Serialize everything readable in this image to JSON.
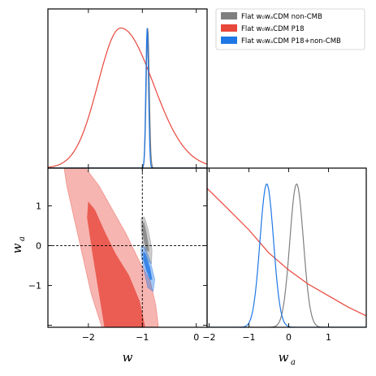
{
  "chart_data": {
    "type": "corner-plot",
    "parameters": [
      "w",
      "w_a"
    ],
    "xlabel_w": "w",
    "xlabel_wa": "w",
    "xlabel_wa_sub": "a",
    "ylabel_wa": "w",
    "ylabel_wa_sub": "a",
    "w_range": [
      -2.75,
      0.2
    ],
    "wa_range": [
      -2.05,
      1.95
    ],
    "w_ticks": [
      -2,
      -1,
      0
    ],
    "wa_ticks": [
      -2,
      -1,
      0,
      1
    ],
    "tick_labels": {
      "m2": "−2",
      "m1": "−1",
      "z": "0",
      "p1": "1"
    },
    "reference_lines": {
      "w": -1,
      "w_a": 0
    },
    "series": [
      {
        "name": "Flat w₀wₐCDM non-CMB",
        "color": "#7f7f7f",
        "w_peak": -0.9,
        "w_width": 0.028,
        "wa_peak": 0.2,
        "wa_width": 0.17,
        "contour_68": [
          [
            -1,
            0.55
          ],
          [
            -0.97,
            0.58
          ],
          [
            -0.93,
            0.35
          ],
          [
            -0.88,
            -0.05
          ],
          [
            -0.88,
            -0.15
          ],
          [
            -0.93,
            -0.1
          ],
          [
            -0.98,
            0.2
          ]
        ],
        "contour_95": [
          [
            -1.02,
            0.7
          ],
          [
            -0.96,
            0.72
          ],
          [
            -0.89,
            0.4
          ],
          [
            -0.82,
            -0.1
          ],
          [
            -0.83,
            -0.45
          ],
          [
            -0.9,
            -0.4
          ],
          [
            -0.98,
            0.0
          ],
          [
            -1.02,
            0.4
          ]
        ]
      },
      {
        "name": "Flat w₀wₐCDM P18",
        "color": "#e8473c",
        "w_peak": -1.4,
        "w_width": 0.5,
        "wa_curve": [
          [
            -2.05,
            0.97
          ],
          [
            -1.5,
            0.82
          ],
          [
            -1.0,
            0.68
          ],
          [
            -0.5,
            0.52
          ],
          [
            0,
            0.4
          ],
          [
            0.5,
            0.3
          ],
          [
            1.0,
            0.22
          ],
          [
            1.5,
            0.14
          ],
          [
            1.95,
            0.08
          ]
        ],
        "contour_68": [
          [
            -2.0,
            1.1
          ],
          [
            -1.88,
            0.9
          ],
          [
            -1.7,
            0.35
          ],
          [
            -1.5,
            -0.2
          ],
          [
            -1.25,
            -0.75
          ],
          [
            -1.05,
            -1.4
          ],
          [
            -0.95,
            -2.05
          ],
          [
            -1.7,
            -2.05
          ],
          [
            -1.8,
            -1.2
          ],
          [
            -1.92,
            -0.2
          ],
          [
            -2.02,
            0.7
          ]
        ],
        "contour_95": [
          [
            -2.45,
            1.95
          ],
          [
            -2.05,
            1.95
          ],
          [
            -1.8,
            1.5
          ],
          [
            -1.55,
            0.9
          ],
          [
            -1.3,
            0.3
          ],
          [
            -1.05,
            -0.4
          ],
          [
            -0.85,
            -0.9
          ],
          [
            -0.75,
            -1.5
          ],
          [
            -0.7,
            -2.05
          ],
          [
            -1.75,
            -2.05
          ],
          [
            -1.95,
            -1.2
          ],
          [
            -2.1,
            -0.3
          ],
          [
            -2.25,
            0.6
          ],
          [
            -2.4,
            1.5
          ]
        ]
      },
      {
        "name": "Flat w₀wₐCDM P18+non-CMB",
        "color": "#1f77e6",
        "w_peak": -0.91,
        "w_width": 0.025,
        "wa_peak": -0.55,
        "wa_width": 0.17,
        "contour_68": [
          [
            -0.98,
            -0.15
          ],
          [
            -0.95,
            -0.2
          ],
          [
            -0.86,
            -0.55
          ],
          [
            -0.82,
            -0.85
          ],
          [
            -0.86,
            -0.85
          ],
          [
            -0.93,
            -0.6
          ],
          [
            -0.98,
            -0.35
          ]
        ],
        "contour_95": [
          [
            -1.02,
            0.0
          ],
          [
            -0.95,
            -0.05
          ],
          [
            -0.85,
            -0.4
          ],
          [
            -0.77,
            -0.85
          ],
          [
            -0.8,
            -1.15
          ],
          [
            -0.9,
            -1.05
          ],
          [
            -0.97,
            -0.6
          ],
          [
            -1.02,
            -0.25
          ]
        ]
      }
    ],
    "legend": {
      "position": "top-right"
    }
  }
}
